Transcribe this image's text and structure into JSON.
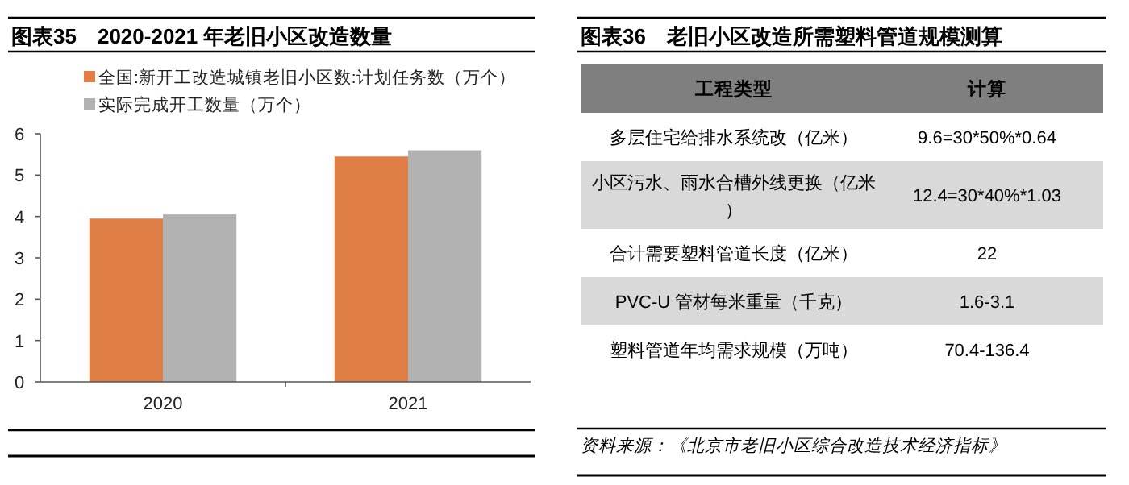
{
  "chart_data": [
    {
      "type": "bar",
      "title": "图表35　2020-2021 年老旧小区改造数量",
      "categories": [
        "2020",
        "2021"
      ],
      "series": [
        {
          "name": "全国:新开工改造城镇老旧小区数:计划任务数（万个）",
          "color": "#e07f45",
          "values": [
            3.95,
            5.45
          ]
        },
        {
          "name": "实际完成开工数量（万个）",
          "color": "#b2b2b2",
          "values": [
            4.05,
            5.6
          ]
        }
      ],
      "ylim": [
        0,
        6
      ],
      "yticks": [
        0,
        1,
        2,
        3,
        4,
        5,
        6
      ],
      "legend": "top"
    },
    {
      "type": "other",
      "title": "图表36　老旧小区改造所需塑料管道规模测算",
      "annotations": [
        "工程类型",
        "计算",
        "多层住宅给排水系统改（亿米）",
        "9.6=30*50%*0.64",
        "小区污水、雨水合槽外线更换（亿米）",
        "12.4=30*40%*1.03",
        "合计需要塑料管道长度（亿米）",
        "22",
        "PVC-U 管材每米重量（千克）",
        "1.6-3.1",
        "塑料管道年均需求规模（万吨）",
        "70.4-136.4",
        "资料来源：《北京市老旧小区综合改造技术经济指标》"
      ]
    }
  ]
}
